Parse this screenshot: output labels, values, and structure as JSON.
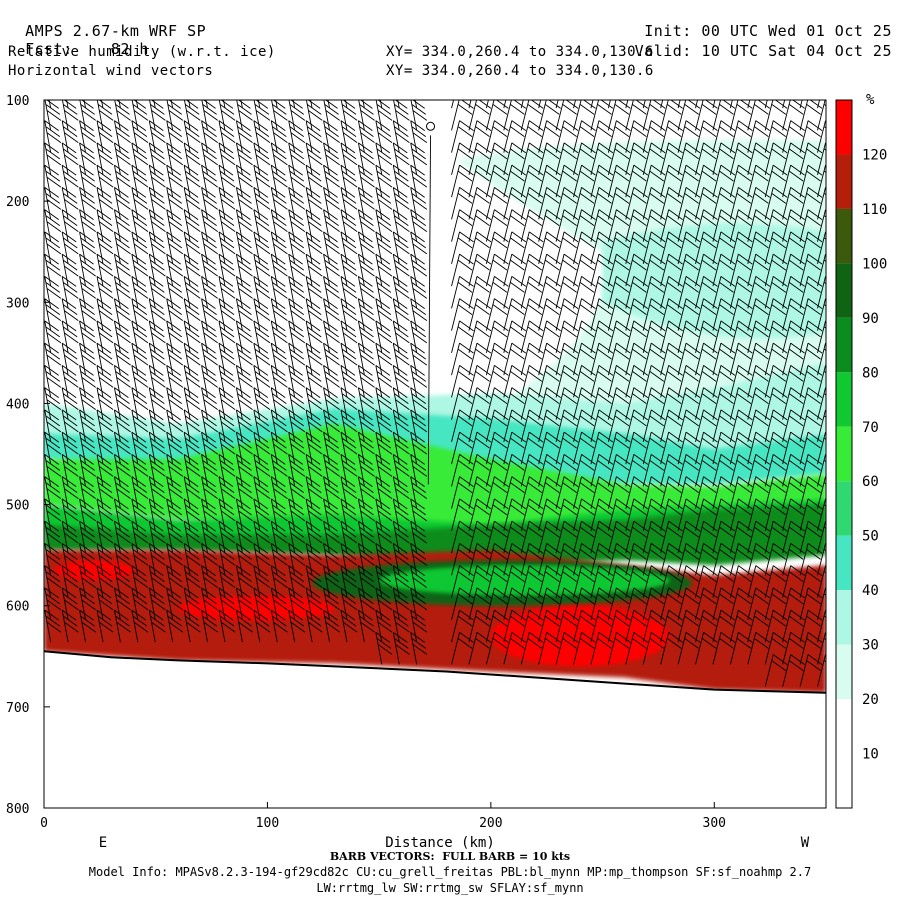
{
  "header": {
    "model": "AMPS 2.67-km WRF SP",
    "fcst_label": "Fcst:",
    "fcst_value": "82 h",
    "field1": "Relative humidity (w.r.t. ice)",
    "field2": "Horizontal wind vectors",
    "init_label": "Init:",
    "init_value": "00 UTC Wed 01 Oct 25",
    "valid_label": "Valid:",
    "valid_value": "10 UTC Sat 04 Oct 25",
    "xy1": "XY= 334.0,260.4 to 334.0,130.6",
    "xy2": "XY= 334.0,260.4 to 334.0,130.6"
  },
  "footer": {
    "barb": "BARB VECTORS:  FULL BARB = 10 kts",
    "model_info": "Model Info: MPASv8.2.3-194-gf29cd82c CU:cu_grell_freitas PBL:bl_mynn MP:mp_thompson SF:sf_noahmp 2.7",
    "model_info2": "LW:rrtmg_lw SW:rrtmg_sw SFLAY:sf_mynn"
  },
  "colors": {
    "rh_10": "#ffffff",
    "rh_20": "#ffffff",
    "rh_30": "#d8fcf0",
    "rh_40": "#aef7e4",
    "rh_50": "#46e6c3",
    "rh_60": "#2fd870",
    "rh_70": "#37eb37",
    "rh_80": "#10c830",
    "rh_90": "#0a8c1e",
    "rh_100": "#0f6414",
    "rh_110": "#3c5a0c",
    "rh_120": "#b41e0a",
    "rh_130": "#ff0000"
  },
  "chart_data": {
    "type": "heatmap",
    "xlabel": "Distance (km)",
    "ylabel": "",
    "xlim": [
      0,
      350
    ],
    "ylim": [
      800,
      100
    ],
    "x_ticks": [
      0,
      100,
      200,
      300
    ],
    "y_ticks": [
      100,
      200,
      300,
      400,
      500,
      600,
      700,
      800
    ],
    "x_end_labels": [
      "E",
      "W"
    ],
    "colorbar": {
      "unit": "%",
      "levels": [
        10,
        20,
        30,
        40,
        50,
        60,
        70,
        80,
        90,
        100,
        110,
        120
      ]
    },
    "terrain_pressure": {
      "x": [
        0,
        30,
        60,
        100,
        140,
        180,
        220,
        260,
        300,
        350
      ],
      "p": [
        645,
        651,
        654,
        657,
        661,
        665,
        671,
        677,
        683,
        686
      ]
    },
    "rh_layers": [
      {
        "level": "rh_30",
        "top_x": [
          0,
          100,
          190,
          220,
          300,
          350
        ],
        "top_p": [
          800,
          800,
          148,
          145,
          140,
          138
        ],
        "bottom_p": [
          800,
          800,
          305,
          320,
          300,
          290
        ]
      },
      {
        "level": "rh_40",
        "top_x": [
          0,
          60,
          130,
          200,
          260,
          300,
          350
        ],
        "top_p": [
          400,
          420,
          395,
          390,
          400,
          385,
          360
        ],
        "bottom_p": [
          445,
          440,
          425,
          440,
          450,
          450,
          430
        ]
      },
      {
        "level": "rh_50",
        "top_x": [
          0,
          60,
          130,
          200,
          260,
          300,
          350
        ],
        "top_p": [
          430,
          435,
          405,
          415,
          430,
          445,
          430
        ],
        "bottom_p": [
          455,
          465,
          455,
          470,
          480,
          480,
          470
        ]
      },
      {
        "level": "rh_70",
        "top_x": [
          0,
          60,
          130,
          200,
          260,
          300,
          350
        ],
        "top_p": [
          455,
          455,
          420,
          455,
          480,
          482,
          470
        ],
        "bottom_p": [
          500,
          515,
          520,
          525,
          510,
          505,
          500
        ]
      },
      {
        "level": "rh_80",
        "top_x": [
          0,
          60,
          130,
          200,
          260,
          300,
          350
        ],
        "top_p": [
          500,
          515,
          510,
          520,
          505,
          500,
          495
        ],
        "bottom_p": [
          525,
          535,
          540,
          550,
          545,
          545,
          540
        ]
      },
      {
        "level": "rh_90",
        "top_x": [
          0,
          60,
          130,
          200,
          260,
          300,
          350
        ],
        "top_p": [
          520,
          530,
          530,
          520,
          515,
          505,
          500
        ],
        "bottom_p": [
          545,
          545,
          550,
          560,
          555,
          560,
          550
        ]
      },
      {
        "level": "rh_120",
        "top_x": [
          0,
          60,
          130,
          200,
          260,
          300,
          350
        ],
        "top_p": [
          545,
          545,
          550,
          545,
          560,
          570,
          560
        ],
        "bottom_p": [
          645,
          654,
          657,
          665,
          671,
          683,
          686
        ]
      }
    ],
    "rh_patches": [
      {
        "level": "rh_100",
        "x": [
          120,
          290
        ],
        "p": [
          555,
          600
        ]
      },
      {
        "level": "rh_80",
        "x": [
          150,
          280
        ],
        "p": [
          560,
          590
        ]
      },
      {
        "level": "rh_130",
        "x": [
          200,
          280
        ],
        "p": [
          600,
          660
        ]
      },
      {
        "level": "rh_130",
        "x": [
          60,
          130
        ],
        "p": [
          590,
          615
        ]
      },
      {
        "level": "rh_130",
        "x": [
          5,
          40
        ],
        "p": [
          555,
          575
        ]
      }
    ],
    "wind_barbs": {
      "x_spacing_km": 7.8,
      "p_spacing_hpa": 22,
      "direction_note": "flag-up barbs, mostly westerly"
    }
  }
}
